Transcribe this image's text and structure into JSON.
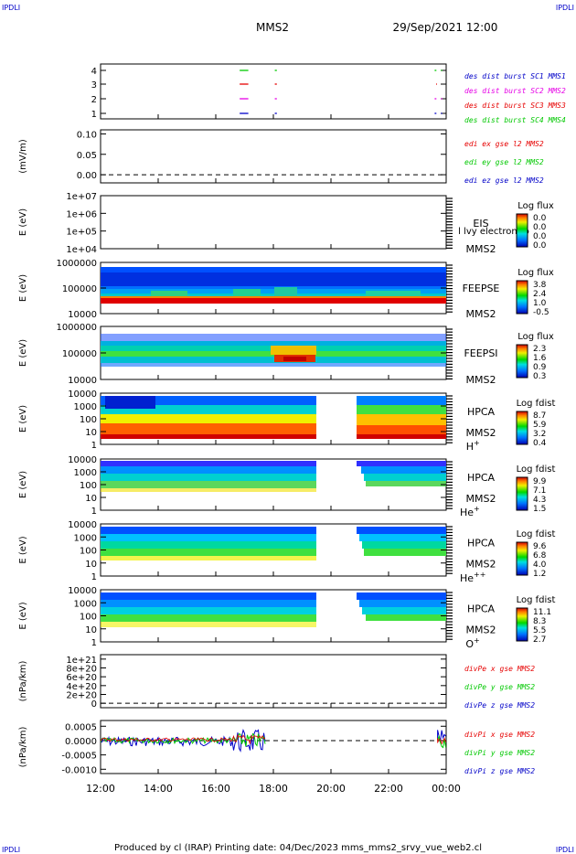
{
  "header": {
    "corner_tl": "IPDLI",
    "corner_tr": "IPDLI",
    "corner_bl": "IPDLI",
    "corner_br": "IPDLI",
    "mission": "MMS2",
    "datetime": "29/Sep/2021 12:00"
  },
  "footer": {
    "text": "Produced by cl (IRAP)   Printing date: 04/Dec/2023   mms_mms2_srvy_vue_web2.cl"
  },
  "chart_data": {
    "type": "stacked-panels",
    "x_axis": {
      "ticks": [
        "12:00",
        "14:00",
        "16:00",
        "18:00",
        "20:00",
        "22:00",
        "00:00"
      ],
      "range_hours": [
        12,
        24
      ]
    },
    "colors": {
      "mms1": "#0000c8",
      "mms2": "#e600e6",
      "mms3": "#e60000",
      "mms4": "#00c800",
      "ex": "#e60000",
      "ey": "#00c800",
      "ez": "#0000c8"
    },
    "panels": [
      {
        "id": "des_burst",
        "yticks": [
          "4",
          "3",
          "2",
          "1"
        ],
        "ylabel": "",
        "legend": [
          {
            "text": "des dist burst SC1 MMS1",
            "color_key": "mms1"
          },
          {
            "text": "des dist burst SC2 MMS2",
            "color_key": "mms2"
          },
          {
            "text": "des dist burst SC3 MMS3",
            "color_key": "mms3"
          },
          {
            "text": "des dist burst SC4 MMS4",
            "color_key": "mms4"
          }
        ],
        "segments": [
          {
            "level": 4,
            "from": 16.83,
            "to": 17.13
          },
          {
            "level": 4,
            "from": 18.05,
            "to": 18.12
          },
          {
            "level": 4,
            "from": 23.6,
            "to": 23.66
          },
          {
            "level": 4,
            "from": 23.82,
            "to": 23.86
          },
          {
            "level": 3,
            "from": 16.83,
            "to": 17.13
          },
          {
            "level": 3,
            "from": 18.05,
            "to": 18.12
          },
          {
            "level": 3,
            "from": 23.65,
            "to": 23.68
          },
          {
            "level": 2,
            "from": 16.83,
            "to": 17.13
          },
          {
            "level": 2,
            "from": 18.05,
            "to": 18.12
          },
          {
            "level": 2,
            "from": 23.6,
            "to": 23.66
          },
          {
            "level": 2,
            "from": 23.82,
            "to": 23.86
          },
          {
            "level": 1,
            "from": 16.83,
            "to": 17.13
          },
          {
            "level": 1,
            "from": 18.05,
            "to": 18.12
          },
          {
            "level": 1,
            "from": 23.6,
            "to": 23.66
          },
          {
            "level": 1,
            "from": 23.82,
            "to": 23.86
          }
        ]
      },
      {
        "id": "edi",
        "ylabel": "(mV/m)",
        "yticks": [
          "0.10",
          "0.05",
          "0.00"
        ],
        "ylim": [
          -0.02,
          0.11
        ],
        "legend": [
          {
            "text": "edi ex gse l2 MMS2",
            "color_key": "ex"
          },
          {
            "text": "edi ey gse l2 MMS2",
            "color_key": "ey"
          },
          {
            "text": "edi ez gse l2 MMS2",
            "color_key": "ez"
          }
        ]
      },
      {
        "id": "eis",
        "ylabel": "E (eV)",
        "yticks": [
          "1e+07",
          "1e+06",
          "1e+05",
          "1e+04"
        ],
        "labels": [
          "EIS",
          "MMS2"
        ],
        "overlay": "l lvy electron to",
        "colorbar_title": "Log flux",
        "colorbar_ticks": [
          "0.0",
          "0.0",
          "0.0",
          "0.0"
        ]
      },
      {
        "id": "feepse",
        "ylabel": "E (eV)",
        "yticks": [
          "1000000",
          "100000",
          "10000"
        ],
        "labels": [
          "FEEPSE",
          "MMS2"
        ],
        "colorbar_title": "Log flux",
        "colorbar_ticks": [
          "3.8",
          "2.4",
          "1.0",
          "-0.5"
        ]
      },
      {
        "id": "feepsi",
        "ylabel": "E (eV)",
        "yticks": [
          "1000000",
          "100000",
          "10000"
        ],
        "labels": [
          "FEEPSI",
          "MMS2"
        ],
        "colorbar_title": "Log flux",
        "colorbar_ticks": [
          "2.3",
          "1.6",
          "0.9",
          "0.3"
        ]
      },
      {
        "id": "hpca_h",
        "ylabel": "E (eV)",
        "yticks": [
          "10000",
          "1000",
          "100",
          "10",
          "1"
        ],
        "labels": [
          "HPCA",
          "MMS2"
        ],
        "species": "H",
        "charge": "+",
        "colorbar_title": "Log fdist",
        "colorbar_ticks": [
          "8.7",
          "5.9",
          "3.2",
          "0.4"
        ]
      },
      {
        "id": "hpca_he1",
        "ylabel": "E (eV)",
        "yticks": [
          "10000",
          "1000",
          "100",
          "10",
          "1"
        ],
        "labels": [
          "HPCA",
          "MMS2"
        ],
        "species": "He",
        "charge": "+",
        "colorbar_title": "Log fdist",
        "colorbar_ticks": [
          "9.9",
          "7.1",
          "4.3",
          "1.5"
        ]
      },
      {
        "id": "hpca_he2",
        "ylabel": "E (eV)",
        "yticks": [
          "10000",
          "1000",
          "100",
          "10",
          "1"
        ],
        "labels": [
          "HPCA",
          "MMS2"
        ],
        "species": "He",
        "charge": "++",
        "colorbar_title": "Log fdist",
        "colorbar_ticks": [
          "9.6",
          "6.8",
          "4.0",
          "1.2"
        ]
      },
      {
        "id": "hpca_o",
        "ylabel": "E (eV)",
        "yticks": [
          "10000",
          "1000",
          "100",
          "10",
          "1"
        ],
        "labels": [
          "HPCA",
          "MMS2"
        ],
        "species": "O",
        "charge": "+",
        "colorbar_title": "Log fdist",
        "colorbar_ticks": [
          "11.1",
          "8.3",
          "5.5",
          "2.7"
        ]
      },
      {
        "id": "divpe",
        "ylabel": "(nPa/km)",
        "yticks": [
          "1e+21",
          "8e+20",
          "6e+20",
          "4e+20",
          "2e+20",
          "0"
        ],
        "ylim": [
          -1e+20,
          1.1e+21
        ],
        "legend": [
          {
            "text": "divPe x gse MMS2",
            "color_key": "ex"
          },
          {
            "text": "divPe y gse MMS2",
            "color_key": "ey"
          },
          {
            "text": "divPe z gse MMS2",
            "color_key": "ez"
          }
        ]
      },
      {
        "id": "divpi",
        "ylabel": "(nPa/km)",
        "yticks": [
          "0.0005",
          "0.0000",
          "-0.0005",
          "-0.0010"
        ],
        "ylim": [
          -0.00115,
          0.0007
        ],
        "legend": [
          {
            "text": "divPi x gse MMS2",
            "color_key": "ex"
          },
          {
            "text": "divPi y gse MMS2",
            "color_key": "ey"
          },
          {
            "text": "divPi z gse MMS2",
            "color_key": "ez"
          }
        ]
      }
    ]
  }
}
